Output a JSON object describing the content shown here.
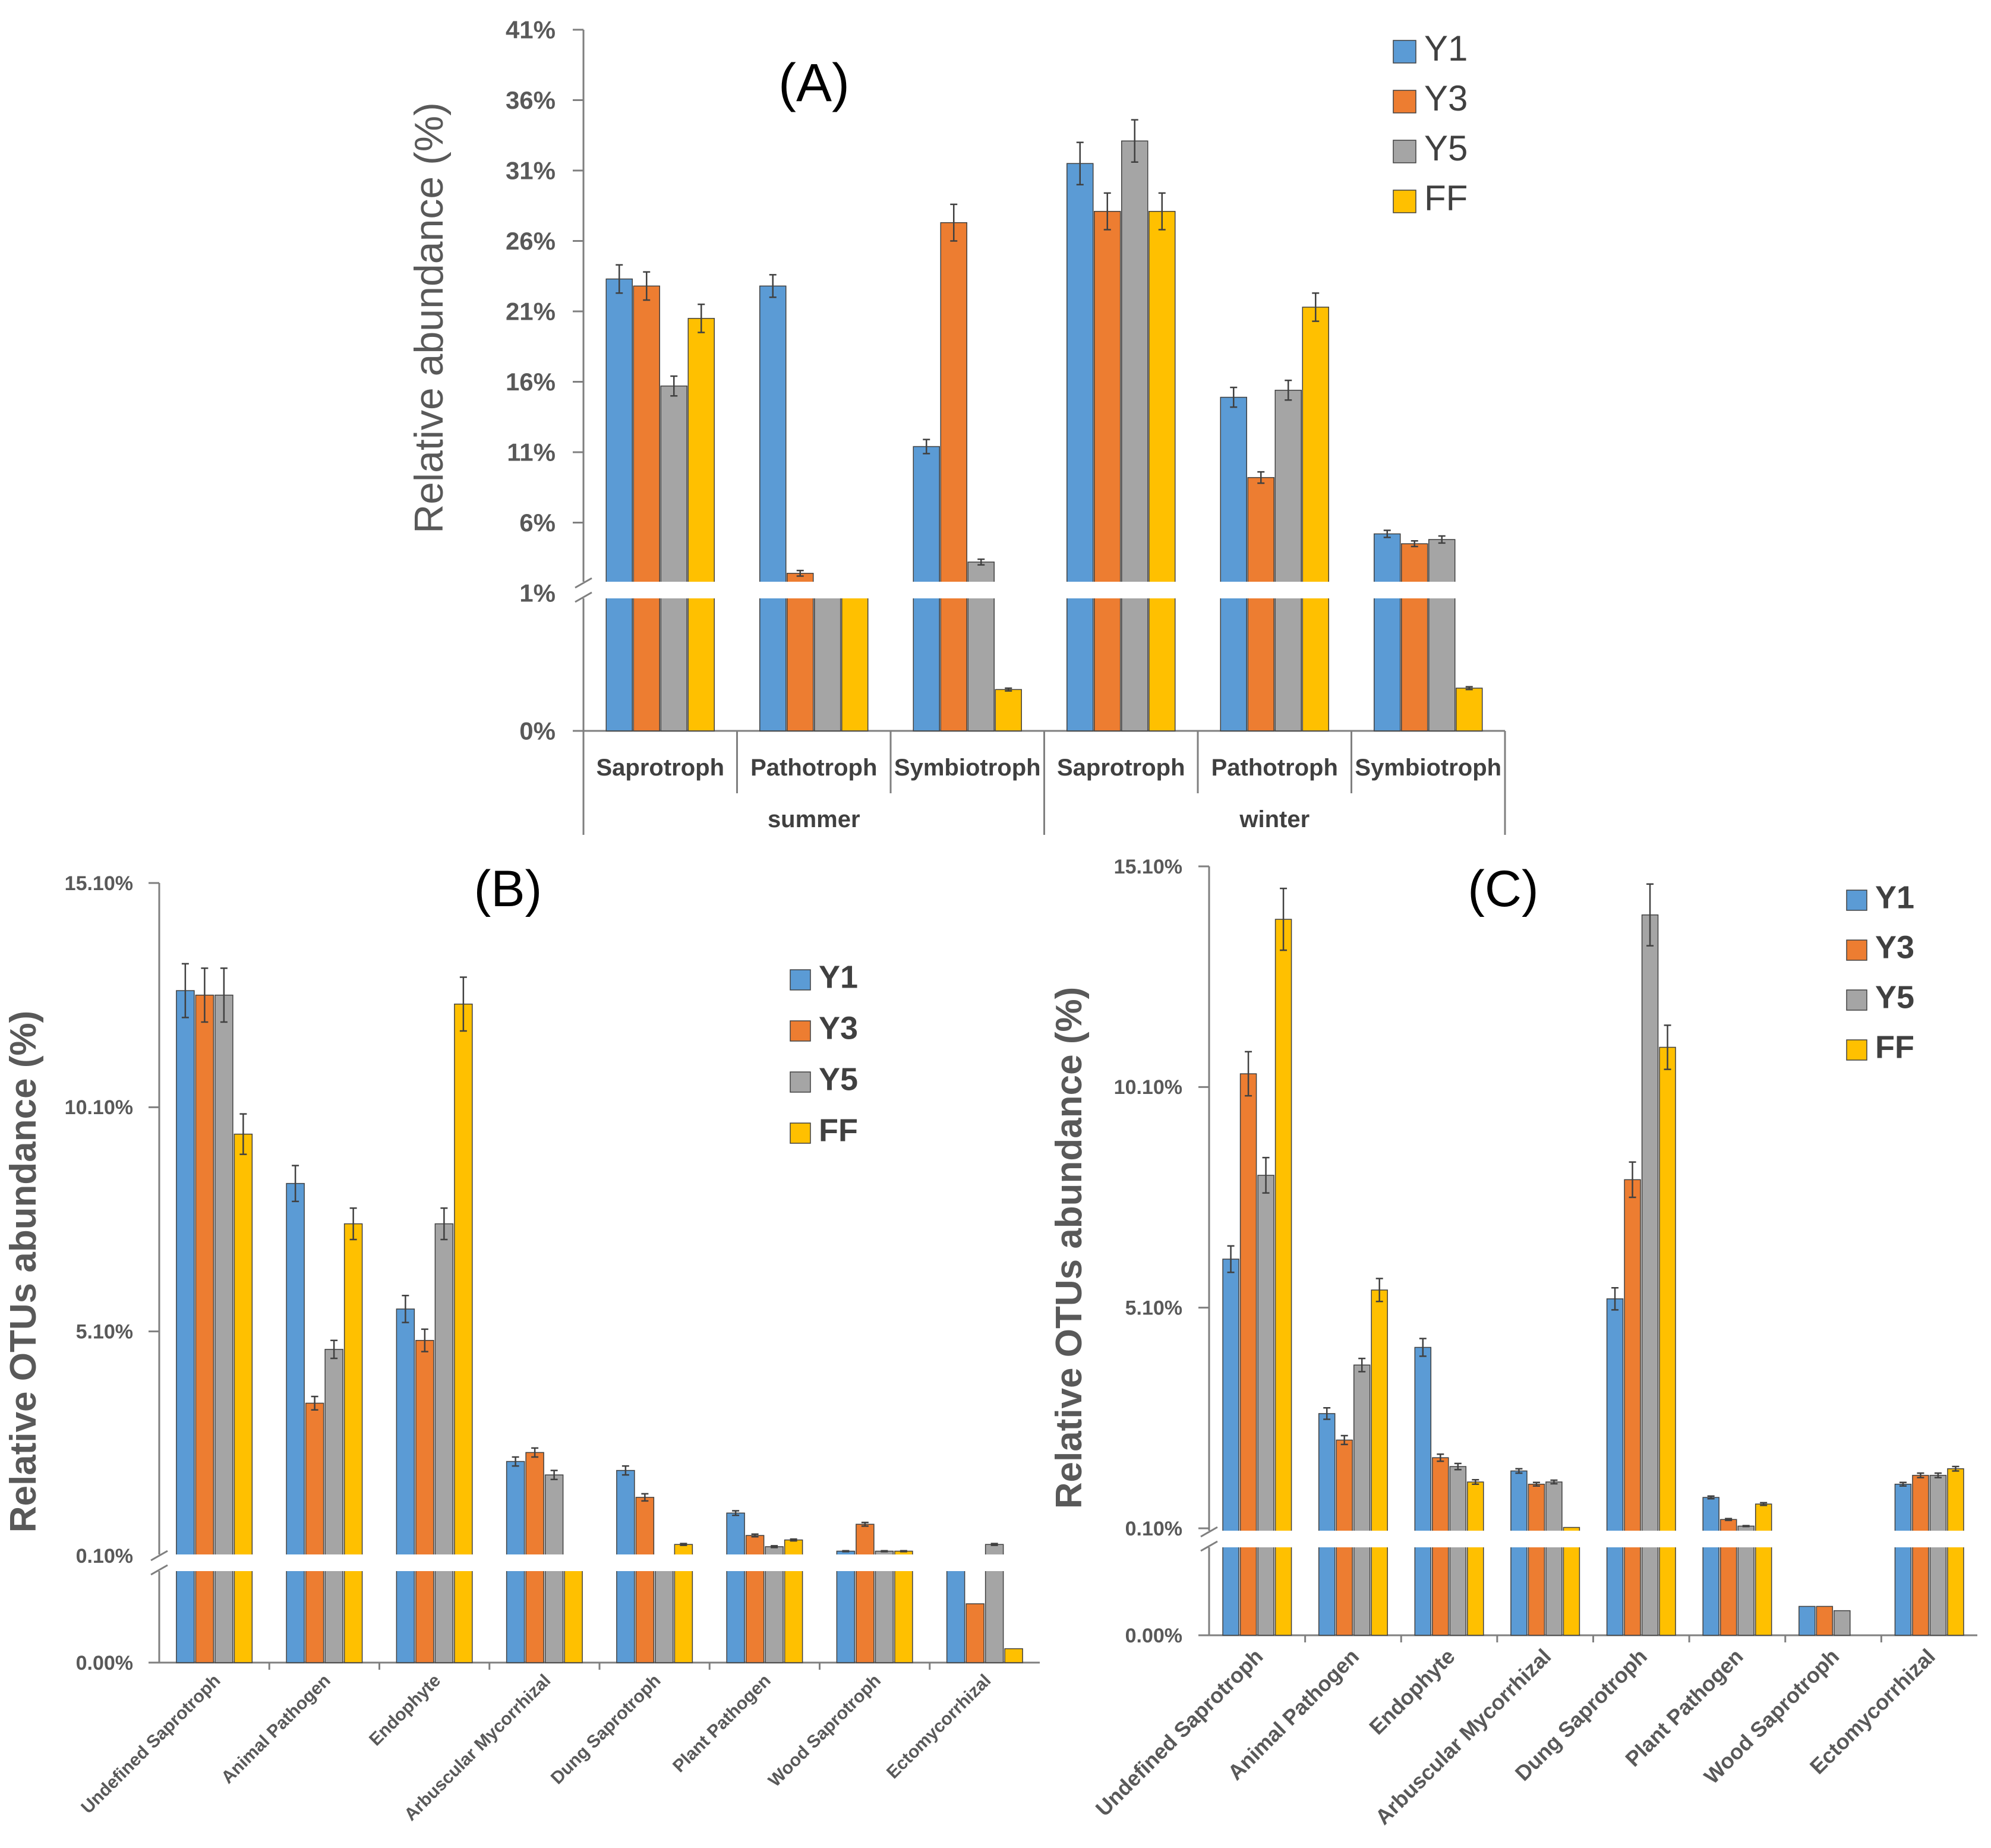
{
  "colors": {
    "Y1": "#5b9bd5",
    "Y3": "#ed7d31",
    "Y5": "#a5a5a5",
    "FF": "#ffc000"
  },
  "chart_data": [
    {
      "id": "A",
      "type": "bar",
      "title": "(A)",
      "ylabel": "Relative abundance (%)",
      "xlabel": "",
      "axis_break": {
        "lower_range": [
          0,
          1
        ],
        "upper_range": [
          1,
          41
        ]
      },
      "yticks": [
        "0%",
        "1%",
        "6%",
        "11%",
        "16%",
        "21%",
        "26%",
        "31%",
        "36%",
        "41%"
      ],
      "ytick_values": [
        0,
        1,
        6,
        11,
        16,
        21,
        26,
        31,
        36,
        41
      ],
      "groups": [
        "summer",
        "winter"
      ],
      "categories": [
        "Saprotroph",
        "Pathotroph",
        "Symbiotroph",
        "Saprotroph",
        "Pathotroph",
        "Symbiotroph"
      ],
      "category_groups": [
        0,
        0,
        0,
        1,
        1,
        1
      ],
      "legend": [
        "Y1",
        "Y3",
        "Y5",
        "FF"
      ],
      "legend_position": "top-right",
      "series": [
        {
          "name": "Y1",
          "values": [
            23.3,
            22.8,
            11.4,
            31.5,
            14.9,
            5.2
          ],
          "errors": [
            1.0,
            0.8,
            0.5,
            1.5,
            0.7,
            0.25
          ]
        },
        {
          "name": "Y3",
          "values": [
            22.8,
            2.4,
            27.3,
            28.1,
            9.2,
            4.5
          ],
          "errors": [
            1.0,
            0.2,
            1.3,
            1.3,
            0.4,
            0.2
          ]
        },
        {
          "name": "Y5",
          "values": [
            15.7,
            1.5,
            3.2,
            33.1,
            15.4,
            4.8
          ],
          "errors": [
            0.7,
            0.1,
            0.2,
            1.5,
            0.7,
            0.25
          ]
        },
        {
          "name": "FF",
          "values": [
            20.5,
            1.2,
            0.3,
            28.1,
            21.3,
            0.31
          ],
          "errors": [
            1.0,
            0.1,
            0.01,
            1.3,
            1.0,
            0.01
          ]
        }
      ]
    },
    {
      "id": "B",
      "type": "bar",
      "title": "(B)",
      "ylabel": "Relative OTUs abundance (%)",
      "xlabel": "",
      "axis_break": {
        "lower_range": [
          0,
          0.1
        ],
        "upper_range": [
          0.1,
          15.1
        ]
      },
      "yticks": [
        "0.00%",
        "0.10%",
        "5.10%",
        "10.10%",
        "15.10%"
      ],
      "ytick_values": [
        0,
        0.1,
        5.1,
        10.1,
        15.1
      ],
      "categories": [
        "Undefined Saprotroph",
        "Animal Pathogen",
        "Endophyte",
        "Arbuscular Mycorrhizal",
        "Dung Saprotroph",
        "Plant Pathogen",
        "Wood Saprotroph",
        "Ectomycorrhizal"
      ],
      "legend": [
        "Y1",
        "Y3",
        "Y5",
        "FF"
      ],
      "legend_position": "top-right",
      "series": [
        {
          "name": "Y1",
          "values": [
            12.7,
            8.4,
            5.6,
            2.2,
            2.0,
            1.05,
            0.2,
            0.1
          ],
          "errors": [
            0.6,
            0.4,
            0.3,
            0.1,
            0.1,
            0.05,
            0.01,
            0
          ]
        },
        {
          "name": "Y3",
          "values": [
            12.6,
            3.5,
            4.9,
            2.4,
            1.4,
            0.55,
            0.8,
            0.055
          ],
          "errors": [
            0.6,
            0.15,
            0.25,
            0.1,
            0.08,
            0.03,
            0.04,
            0
          ]
        },
        {
          "name": "Y5",
          "values": [
            12.6,
            4.7,
            7.5,
            1.9,
            0.1,
            0.3,
            0.2,
            0.35
          ],
          "errors": [
            0.6,
            0.2,
            0.35,
            0.1,
            0,
            0.02,
            0.01,
            0.02
          ]
        },
        {
          "name": "FF",
          "values": [
            9.5,
            7.5,
            12.4,
            0.1,
            0.35,
            0.45,
            0.2,
            0.013
          ],
          "errors": [
            0.45,
            0.35,
            0.6,
            0,
            0.02,
            0.02,
            0.01,
            0
          ]
        }
      ]
    },
    {
      "id": "C",
      "type": "bar",
      "title": "(C)",
      "ylabel": "Relative OTUs abundance (%)",
      "xlabel": "",
      "axis_break": {
        "lower_range": [
          0,
          0.1
        ],
        "upper_range": [
          0.1,
          15.1
        ]
      },
      "yticks": [
        "0.00%",
        "0.10%",
        "5.10%",
        "10.10%",
        "15.10%"
      ],
      "ytick_values": [
        0,
        0.1,
        5.1,
        10.1,
        15.1
      ],
      "categories": [
        "Undefined Saprotroph",
        "Animal Pathogen",
        "Endophyte",
        "Arbuscular Mycorrhizal",
        "Dung Saprotroph",
        "Plant Pathogen",
        "Wood Saprotroph",
        "Ectomycorrhizal"
      ],
      "legend": [
        "Y1",
        "Y3",
        "Y5",
        "FF"
      ],
      "legend_position": "top-right",
      "series": [
        {
          "name": "Y1",
          "values": [
            6.2,
            2.7,
            4.2,
            1.4,
            5.3,
            0.8,
            0.027,
            1.1
          ],
          "errors": [
            0.3,
            0.13,
            0.2,
            0.05,
            0.25,
            0.03,
            0,
            0.04
          ]
        },
        {
          "name": "Y3",
          "values": [
            10.4,
            2.1,
            1.7,
            1.1,
            8.0,
            0.3,
            0.027,
            1.3
          ],
          "errors": [
            0.5,
            0.1,
            0.08,
            0.04,
            0.4,
            0.02,
            0,
            0.05
          ]
        },
        {
          "name": "Y5",
          "values": [
            8.1,
            3.8,
            1.5,
            1.15,
            14.0,
            0.15,
            0.023,
            1.3
          ],
          "errors": [
            0.4,
            0.15,
            0.07,
            0.04,
            0.7,
            0.01,
            0,
            0.05
          ]
        },
        {
          "name": "FF",
          "values": [
            13.9,
            5.5,
            1.15,
            0.12,
            11.0,
            0.65,
            0,
            1.45
          ],
          "errors": [
            0.7,
            0.26,
            0.05,
            0,
            0.5,
            0.03,
            0,
            0.05
          ]
        }
      ]
    }
  ]
}
